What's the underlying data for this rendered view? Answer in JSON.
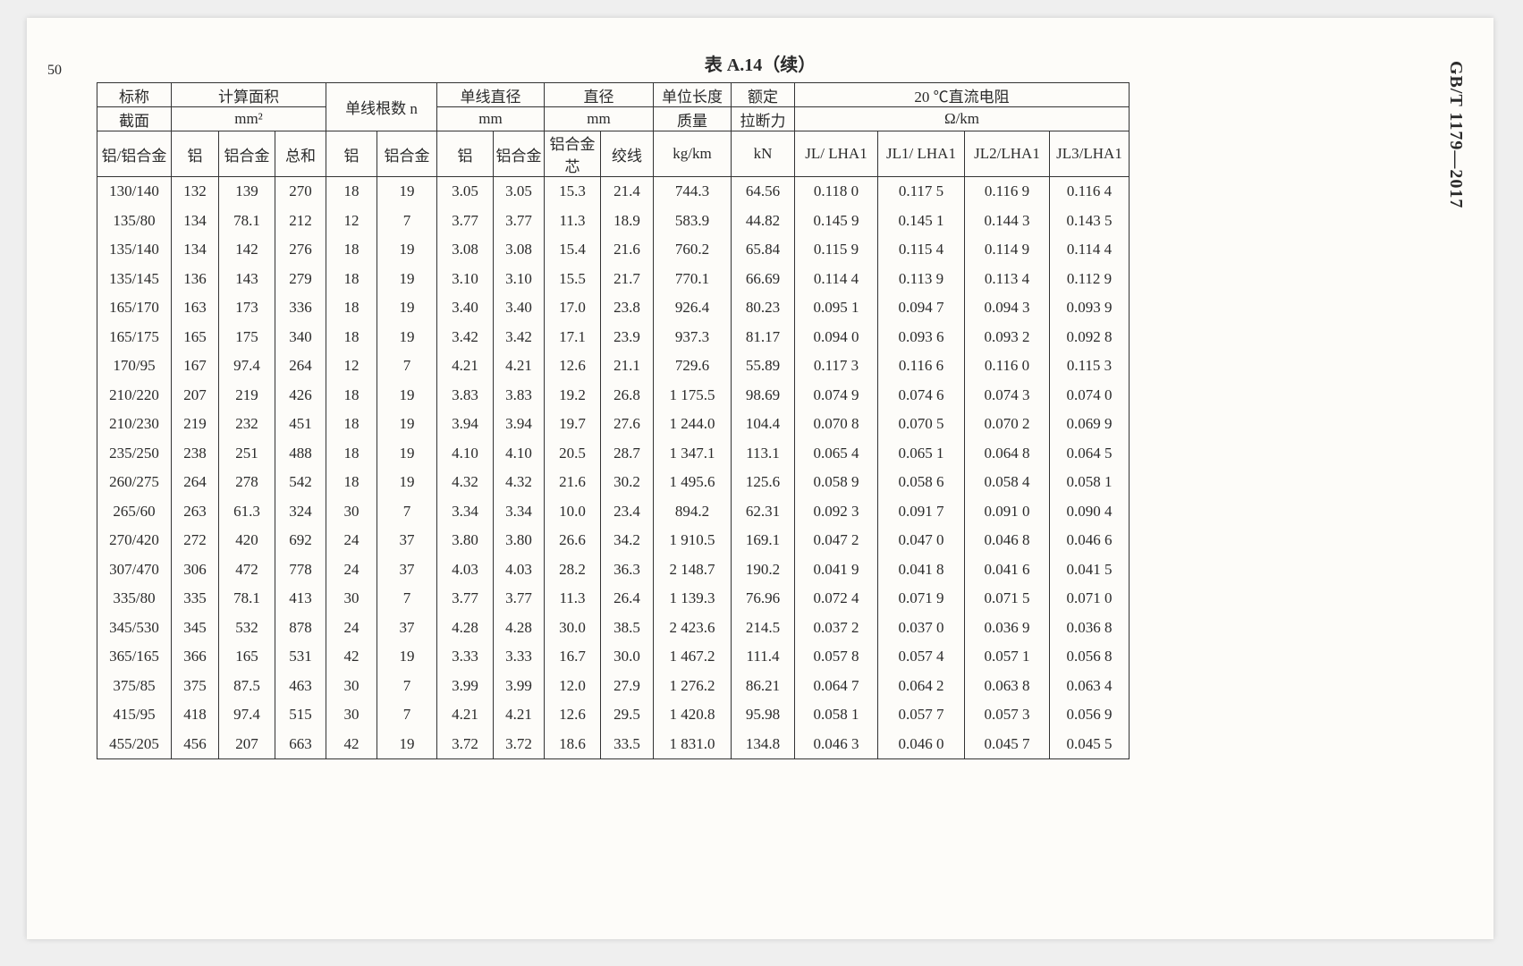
{
  "doc_id": "GB/T 1179—2017",
  "page_num": "50",
  "title": "表 A.14（续）",
  "header": {
    "nominal": "标称",
    "section": "截面",
    "al_alloy": "铝/铝合金",
    "calc_area": "计算面积",
    "mm2": "mm²",
    "strand_count": "单线根数 n",
    "strand_dia": "单线直径",
    "mm_a": "mm",
    "diameter": "直径",
    "mm_b": "mm",
    "unit_mass": "单位长度",
    "mass": "质量",
    "rated": "额定",
    "breaking": "拉断力",
    "resistance": "20 ℃直流电阻",
    "ohm_km": "Ω/km",
    "al": "铝",
    "aluhe": "铝合金",
    "total": "总和",
    "alhexin": "铝合金芯",
    "jiaoxian": "绞线",
    "kgkm": "kg/km",
    "kn": "kN",
    "r1": "JL/ LHA1",
    "r2": "JL1/ LHA1",
    "r3": "JL2/LHA1",
    "r4": "JL3/LHA1"
  },
  "rows": [
    [
      "130/140",
      "132",
      "139",
      "270",
      "18",
      "19",
      "3.05",
      "3.05",
      "15.3",
      "21.4",
      "744.3",
      "64.56",
      "0.118 0",
      "0.117 5",
      "0.116 9",
      "0.116 4"
    ],
    [
      "135/80",
      "134",
      "78.1",
      "212",
      "12",
      "7",
      "3.77",
      "3.77",
      "11.3",
      "18.9",
      "583.9",
      "44.82",
      "0.145 9",
      "0.145 1",
      "0.144 3",
      "0.143 5"
    ],
    [
      "135/140",
      "134",
      "142",
      "276",
      "18",
      "19",
      "3.08",
      "3.08",
      "15.4",
      "21.6",
      "760.2",
      "65.84",
      "0.115 9",
      "0.115 4",
      "0.114 9",
      "0.114 4"
    ],
    [
      "135/145",
      "136",
      "143",
      "279",
      "18",
      "19",
      "3.10",
      "3.10",
      "15.5",
      "21.7",
      "770.1",
      "66.69",
      "0.114 4",
      "0.113 9",
      "0.113 4",
      "0.112 9"
    ],
    [
      "165/170",
      "163",
      "173",
      "336",
      "18",
      "19",
      "3.40",
      "3.40",
      "17.0",
      "23.8",
      "926.4",
      "80.23",
      "0.095 1",
      "0.094 7",
      "0.094 3",
      "0.093 9"
    ],
    [
      "165/175",
      "165",
      "175",
      "340",
      "18",
      "19",
      "3.42",
      "3.42",
      "17.1",
      "23.9",
      "937.3",
      "81.17",
      "0.094 0",
      "0.093 6",
      "0.093 2",
      "0.092 8"
    ],
    [
      "170/95",
      "167",
      "97.4",
      "264",
      "12",
      "7",
      "4.21",
      "4.21",
      "12.6",
      "21.1",
      "729.6",
      "55.89",
      "0.117 3",
      "0.116 6",
      "0.116 0",
      "0.115 3"
    ],
    [
      "210/220",
      "207",
      "219",
      "426",
      "18",
      "19",
      "3.83",
      "3.83",
      "19.2",
      "26.8",
      "1 175.5",
      "98.69",
      "0.074 9",
      "0.074 6",
      "0.074 3",
      "0.074 0"
    ],
    [
      "210/230",
      "219",
      "232",
      "451",
      "18",
      "19",
      "3.94",
      "3.94",
      "19.7",
      "27.6",
      "1 244.0",
      "104.4",
      "0.070 8",
      "0.070 5",
      "0.070 2",
      "0.069 9"
    ],
    [
      "235/250",
      "238",
      "251",
      "488",
      "18",
      "19",
      "4.10",
      "4.10",
      "20.5",
      "28.7",
      "1 347.1",
      "113.1",
      "0.065 4",
      "0.065 1",
      "0.064 8",
      "0.064 5"
    ],
    [
      "260/275",
      "264",
      "278",
      "542",
      "18",
      "19",
      "4.32",
      "4.32",
      "21.6",
      "30.2",
      "1 495.6",
      "125.6",
      "0.058 9",
      "0.058 6",
      "0.058 4",
      "0.058 1"
    ],
    [
      "265/60",
      "263",
      "61.3",
      "324",
      "30",
      "7",
      "3.34",
      "3.34",
      "10.0",
      "23.4",
      "894.2",
      "62.31",
      "0.092 3",
      "0.091 7",
      "0.091 0",
      "0.090 4"
    ],
    [
      "270/420",
      "272",
      "420",
      "692",
      "24",
      "37",
      "3.80",
      "3.80",
      "26.6",
      "34.2",
      "1 910.5",
      "169.1",
      "0.047 2",
      "0.047 0",
      "0.046 8",
      "0.046 6"
    ],
    [
      "307/470",
      "306",
      "472",
      "778",
      "24",
      "37",
      "4.03",
      "4.03",
      "28.2",
      "36.3",
      "2 148.7",
      "190.2",
      "0.041 9",
      "0.041 8",
      "0.041 6",
      "0.041 5"
    ],
    [
      "335/80",
      "335",
      "78.1",
      "413",
      "30",
      "7",
      "3.77",
      "3.77",
      "11.3",
      "26.4",
      "1 139.3",
      "76.96",
      "0.072 4",
      "0.071 9",
      "0.071 5",
      "0.071 0"
    ],
    [
      "345/530",
      "345",
      "532",
      "878",
      "24",
      "37",
      "4.28",
      "4.28",
      "30.0",
      "38.5",
      "2 423.6",
      "214.5",
      "0.037 2",
      "0.037 0",
      "0.036 9",
      "0.036 8"
    ],
    [
      "365/165",
      "366",
      "165",
      "531",
      "42",
      "19",
      "3.33",
      "3.33",
      "16.7",
      "30.0",
      "1 467.2",
      "111.4",
      "0.057 8",
      "0.057 4",
      "0.057 1",
      "0.056 8"
    ],
    [
      "375/85",
      "375",
      "87.5",
      "463",
      "30",
      "7",
      "3.99",
      "3.99",
      "12.0",
      "27.9",
      "1 276.2",
      "86.21",
      "0.064 7",
      "0.064 2",
      "0.063 8",
      "0.063 4"
    ],
    [
      "415/95",
      "418",
      "97.4",
      "515",
      "30",
      "7",
      "4.21",
      "4.21",
      "12.6",
      "29.5",
      "1 420.8",
      "95.98",
      "0.058 1",
      "0.057 7",
      "0.057 3",
      "0.056 9"
    ],
    [
      "455/205",
      "456",
      "207",
      "663",
      "42",
      "19",
      "3.72",
      "3.72",
      "18.6",
      "33.5",
      "1 831.0",
      "134.8",
      "0.046 3",
      "0.046 0",
      "0.045 7",
      "0.045 5"
    ]
  ]
}
